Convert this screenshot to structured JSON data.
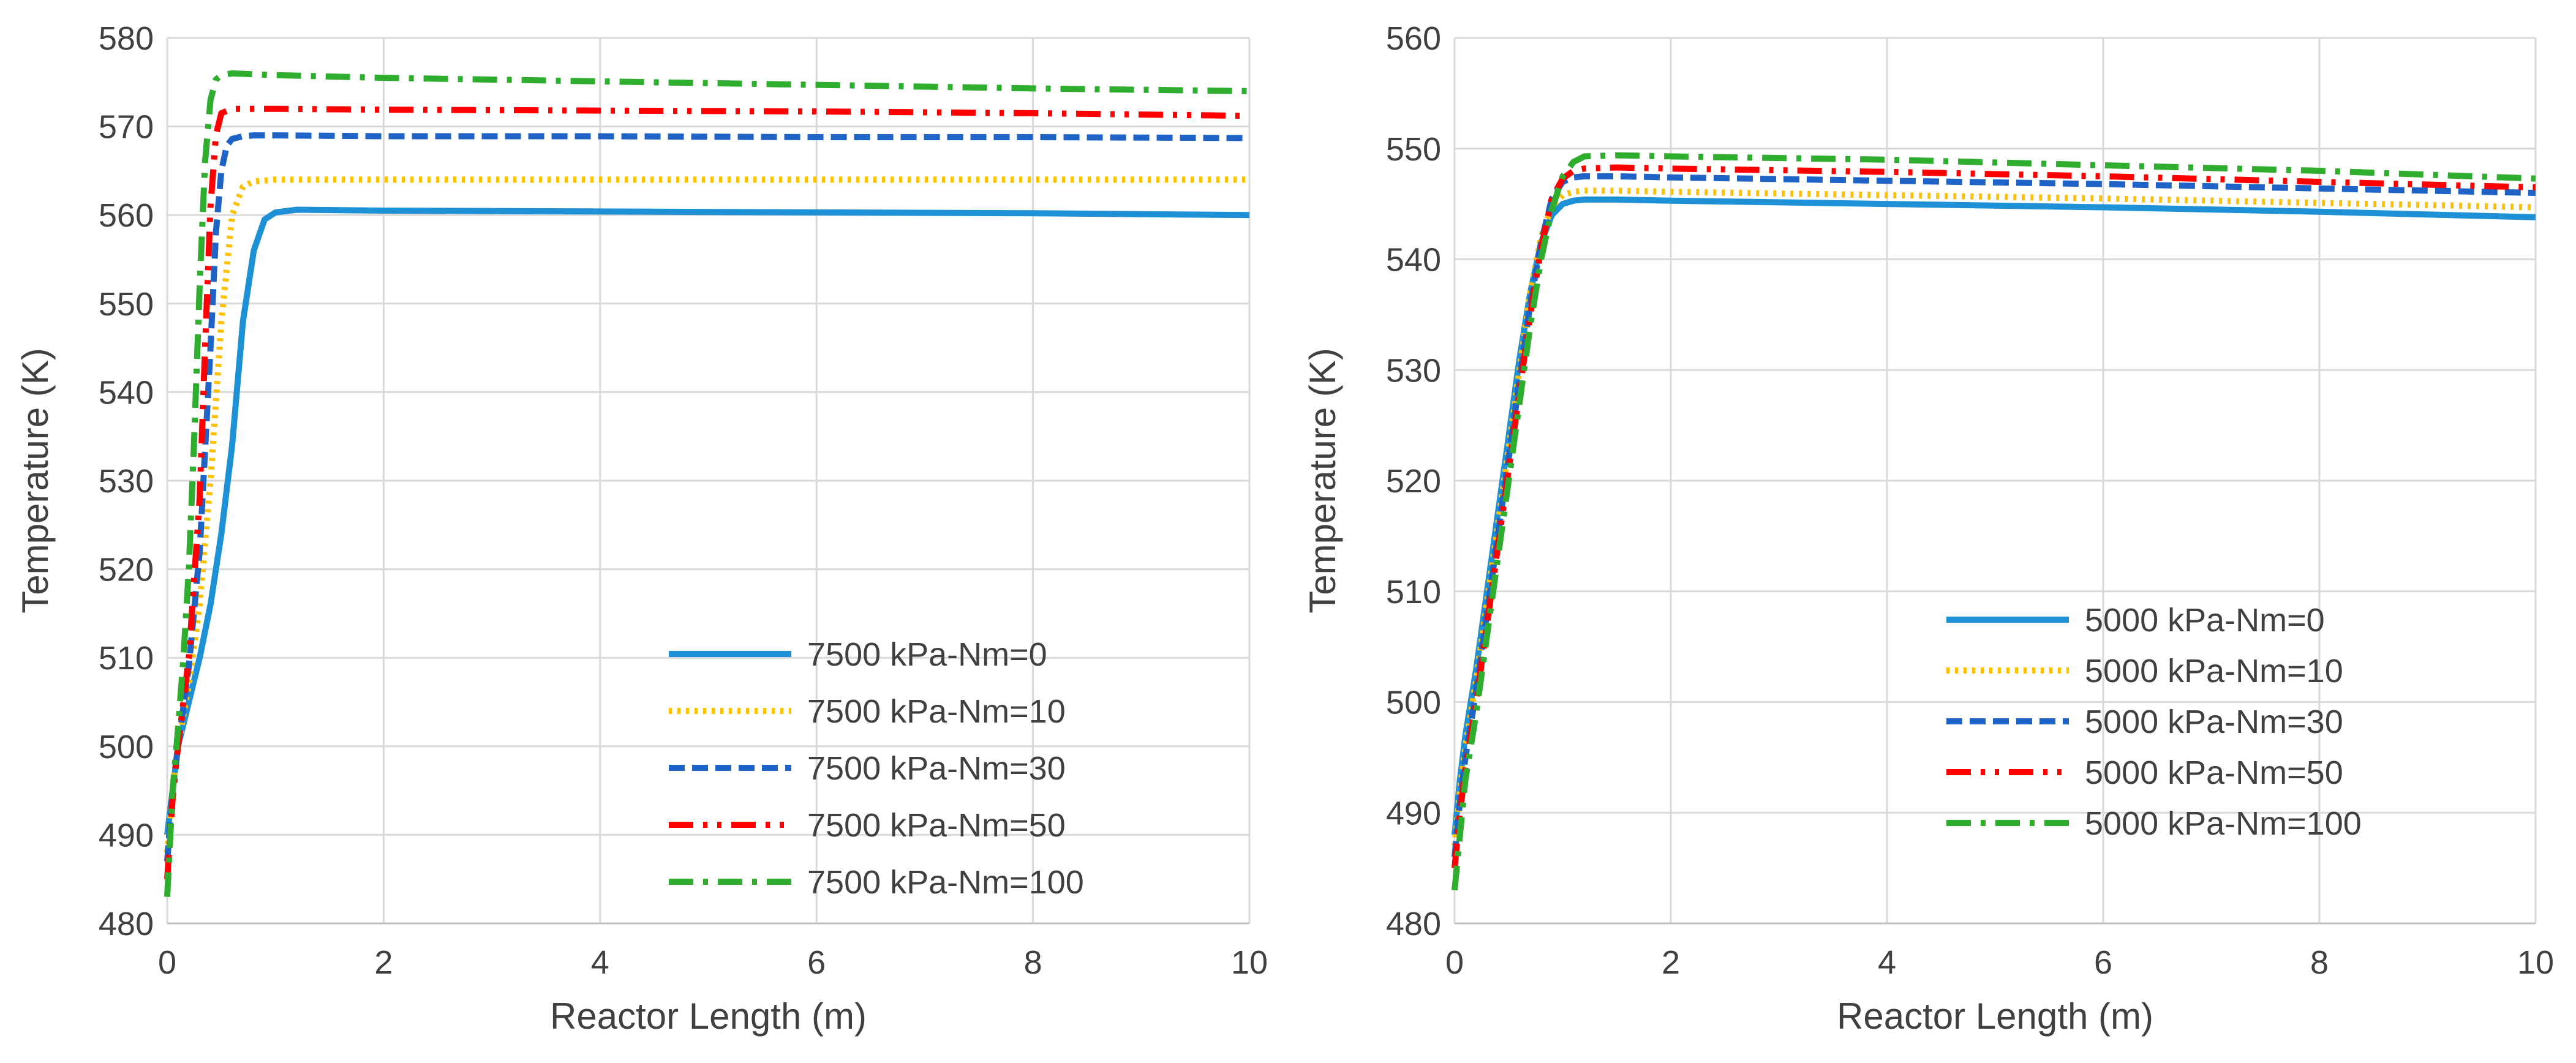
{
  "chart_data": [
    {
      "type": "line",
      "title": "",
      "xlabel": "Reactor Length (m)",
      "ylabel": "Temperature (K)",
      "xlim": [
        0,
        10
      ],
      "ylim": [
        480,
        580
      ],
      "xticks": [
        0,
        2,
        4,
        6,
        8,
        10
      ],
      "yticks": [
        480,
        490,
        500,
        510,
        520,
        530,
        540,
        550,
        560,
        570,
        580
      ],
      "grid": true,
      "legend_position": "bottom-right",
      "series": [
        {
          "name": "7500 kPa-Nm=0",
          "color": "#1E90D6",
          "style": "solid",
          "x": [
            0,
            0.05,
            0.1,
            0.2,
            0.3,
            0.4,
            0.5,
            0.6,
            0.7,
            0.8,
            0.9,
            1.0,
            1.2,
            2,
            4,
            6,
            8,
            10
          ],
          "y": [
            490,
            495,
            500,
            505,
            510,
            516,
            524,
            534,
            548,
            556,
            559.5,
            560.3,
            560.6,
            560.5,
            560.4,
            560.3,
            560.2,
            560
          ]
        },
        {
          "name": "7500 kPa-Nm=10",
          "color": "#FFC000",
          "style": "dotted",
          "x": [
            0,
            0.05,
            0.1,
            0.2,
            0.3,
            0.4,
            0.5,
            0.6,
            0.7,
            0.8,
            1.0,
            2,
            4,
            6,
            8,
            10
          ],
          "y": [
            488,
            495,
            500,
            507,
            516,
            530,
            548,
            560,
            563.2,
            563.8,
            564,
            564,
            564,
            564,
            564,
            564
          ]
        },
        {
          "name": "7500 kPa-Nm=30",
          "color": "#1F63C6",
          "style": "dashed",
          "x": [
            0,
            0.05,
            0.1,
            0.2,
            0.3,
            0.4,
            0.45,
            0.5,
            0.55,
            0.6,
            0.7,
            0.8,
            1.0,
            2,
            4,
            6,
            8,
            10
          ],
          "y": [
            487,
            495,
            500,
            509,
            522,
            545,
            558,
            565,
            567.8,
            568.6,
            568.9,
            569,
            569,
            568.9,
            568.9,
            568.8,
            568.8,
            568.7
          ]
        },
        {
          "name": "7500 kPa-Nm=50",
          "color": "#FF0000",
          "style": "dashdotdot",
          "x": [
            0,
            0.05,
            0.1,
            0.2,
            0.3,
            0.35,
            0.4,
            0.45,
            0.5,
            0.6,
            0.8,
            1.0,
            2,
            4,
            6,
            8,
            10
          ],
          "y": [
            485,
            494,
            500,
            510,
            528,
            545,
            561,
            569,
            571.5,
            572,
            572,
            572,
            571.9,
            571.8,
            571.7,
            571.5,
            571.2
          ]
        },
        {
          "name": "7500 kPa-Nm=100",
          "color": "#2EAD2E",
          "style": "dashdot",
          "x": [
            0,
            0.05,
            0.1,
            0.15,
            0.2,
            0.25,
            0.3,
            0.35,
            0.4,
            0.45,
            0.5,
            0.6,
            0.8,
            1.0,
            2,
            4,
            6,
            8,
            10
          ],
          "y": [
            483,
            495,
            502,
            510,
            520,
            535,
            552,
            566,
            573,
            575.3,
            575.8,
            576,
            575.9,
            575.8,
            575.5,
            575.1,
            574.7,
            574.3,
            574
          ]
        }
      ]
    },
    {
      "type": "line",
      "title": "",
      "xlabel": "Reactor Length (m)",
      "ylabel": "Temperature (K)",
      "xlim": [
        0,
        10
      ],
      "ylim": [
        480,
        560
      ],
      "xticks": [
        0,
        2,
        4,
        6,
        8,
        10
      ],
      "yticks": [
        480,
        490,
        500,
        510,
        520,
        530,
        540,
        550,
        560
      ],
      "grid": true,
      "legend_position": "bottom-right",
      "series": [
        {
          "name": "5000 kPa-Nm=0",
          "color": "#1E90D6",
          "style": "solid",
          "x": [
            0,
            0.05,
            0.1,
            0.2,
            0.3,
            0.4,
            0.5,
            0.6,
            0.7,
            0.8,
            0.9,
            1.0,
            1.1,
            1.2,
            1.5,
            2,
            4,
            6,
            8,
            10
          ],
          "y": [
            488,
            493,
            497,
            503,
            510,
            517,
            524,
            531,
            537,
            541.5,
            544,
            545,
            545.3,
            545.4,
            545.4,
            545.3,
            545,
            544.7,
            544.3,
            543.8
          ]
        },
        {
          "name": "5000 kPa-Nm=10",
          "color": "#FFC000",
          "style": "dotted",
          "x": [
            0,
            0.05,
            0.1,
            0.2,
            0.3,
            0.4,
            0.5,
            0.6,
            0.7,
            0.8,
            0.9,
            1.0,
            1.1,
            1.2,
            1.5,
            2,
            4,
            6,
            8,
            10
          ],
          "y": [
            487,
            492,
            496,
            502,
            509,
            516,
            523,
            530,
            537,
            542,
            544.8,
            545.8,
            546.1,
            546.2,
            546.2,
            546.1,
            545.8,
            545.5,
            545.1,
            544.7
          ]
        },
        {
          "name": "5000 kPa-Nm=30",
          "color": "#1F63C6",
          "style": "dashed",
          "x": [
            0,
            0.05,
            0.1,
            0.2,
            0.3,
            0.4,
            0.5,
            0.6,
            0.7,
            0.8,
            0.9,
            1.0,
            1.1,
            1.2,
            1.5,
            2,
            4,
            6,
            8,
            10
          ],
          "y": [
            486,
            491,
            495,
            501,
            508,
            515,
            522,
            529,
            536,
            541.5,
            545.5,
            547,
            547.4,
            547.5,
            547.5,
            547.4,
            547.1,
            546.8,
            546.4,
            546
          ]
        },
        {
          "name": "5000 kPa-Nm=50",
          "color": "#FF0000",
          "style": "dashdotdot",
          "x": [
            0,
            0.05,
            0.1,
            0.2,
            0.3,
            0.4,
            0.5,
            0.6,
            0.7,
            0.8,
            0.9,
            1.0,
            1.1,
            1.2,
            1.5,
            2,
            4,
            6,
            8,
            10
          ],
          "y": [
            485,
            490,
            494,
            500,
            507,
            514,
            521,
            528,
            535,
            541,
            545.5,
            547.3,
            548,
            548.2,
            548.3,
            548.2,
            547.9,
            547.5,
            547,
            546.5
          ]
        },
        {
          "name": "5000 kPa-Nm=100",
          "color": "#2EAD2E",
          "style": "dashdot",
          "x": [
            0,
            0.05,
            0.1,
            0.2,
            0.3,
            0.4,
            0.5,
            0.6,
            0.7,
            0.8,
            0.9,
            1.0,
            1.1,
            1.2,
            1.5,
            2,
            4,
            6,
            8,
            10
          ],
          "y": [
            483,
            488,
            493,
            499,
            506,
            513,
            520,
            527,
            534,
            540,
            544.5,
            547.5,
            548.8,
            549.3,
            549.4,
            549.3,
            549,
            548.5,
            548,
            547.3
          ]
        }
      ]
    }
  ]
}
